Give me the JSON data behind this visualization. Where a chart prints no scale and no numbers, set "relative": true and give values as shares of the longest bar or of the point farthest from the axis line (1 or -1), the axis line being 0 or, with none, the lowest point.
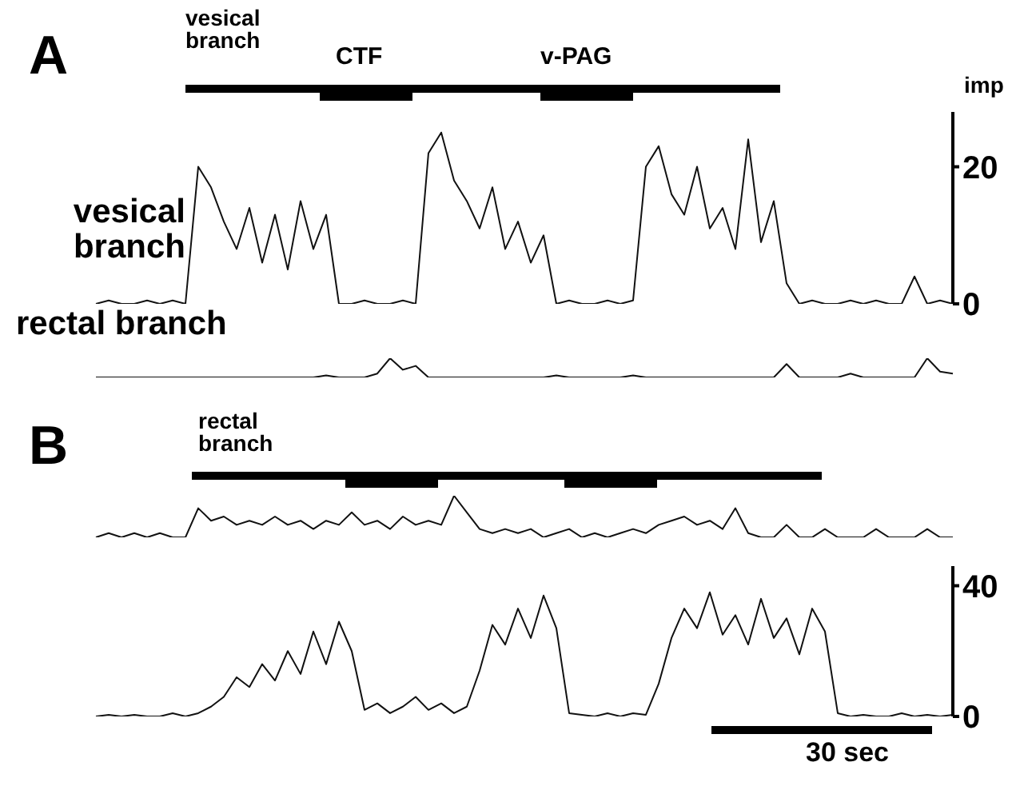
{
  "chart_data": [
    {
      "type": "line",
      "title": "A",
      "ylabel": "imp",
      "annotations": [
        "vesical branch",
        "CTF",
        "v-PAG"
      ],
      "categories": [
        null,
        null,
        null,
        null,
        null,
        null,
        null,
        null,
        null,
        null,
        null,
        null,
        null,
        null,
        null,
        null,
        null,
        null,
        null,
        null,
        null,
        null,
        null,
        null,
        null,
        null,
        null,
        null,
        null,
        null,
        null,
        null,
        null,
        null,
        null,
        null,
        null,
        null,
        null,
        null,
        null,
        null,
        null,
        null,
        null,
        null,
        null,
        null,
        null,
        null,
        null,
        null,
        null,
        null,
        null,
        null,
        null,
        null,
        null,
        null,
        null,
        null,
        null,
        null,
        null,
        null,
        null,
        null
      ],
      "ylim": [
        0,
        28
      ],
      "yticks": [
        0,
        20
      ],
      "tick_labels": "y",
      "series": [
        {
          "name": "vesical branch",
          "color": "#111111",
          "values": [
            0,
            0.5,
            0,
            0,
            0.5,
            0,
            0.5,
            0,
            20,
            17,
            12,
            8,
            14,
            6,
            13,
            5,
            15,
            8,
            13,
            0,
            0,
            0.5,
            0,
            0,
            0.5,
            0,
            22,
            25,
            18,
            15,
            11,
            17,
            8,
            12,
            6,
            10,
            0,
            0.5,
            0,
            0,
            0.5,
            0,
            0.5,
            20,
            23,
            16,
            13,
            20,
            11,
            14,
            8,
            24,
            9,
            15,
            3,
            0,
            0.5,
            0,
            0,
            0.5,
            0,
            0.5,
            0,
            0,
            4,
            0,
            0.5,
            0
          ]
        }
      ]
    },
    {
      "type": "line",
      "relative": true,
      "tick_labels": false,
      "categories": [
        null,
        null,
        null,
        null,
        null,
        null,
        null,
        null,
        null,
        null,
        null,
        null,
        null,
        null,
        null,
        null,
        null,
        null,
        null,
        null,
        null,
        null,
        null,
        null,
        null,
        null,
        null,
        null,
        null,
        null,
        null,
        null,
        null,
        null,
        null,
        null,
        null,
        null,
        null,
        null,
        null,
        null,
        null,
        null,
        null,
        null,
        null,
        null,
        null,
        null,
        null,
        null,
        null,
        null,
        null,
        null,
        null,
        null,
        null,
        null,
        null,
        null,
        null,
        null,
        null,
        null,
        null,
        null
      ],
      "series": [
        {
          "name": "rectal branch",
          "color": "#111111",
          "values": [
            0,
            0,
            0,
            0,
            0,
            0,
            0,
            0,
            0,
            0,
            0,
            0,
            0,
            0,
            0,
            0,
            0,
            0,
            0.1,
            0,
            0,
            0,
            0.2,
            1,
            0.4,
            0.6,
            0,
            0,
            0,
            0,
            0,
            0,
            0,
            0,
            0,
            0,
            0.1,
            0,
            0,
            0,
            0,
            0,
            0.1,
            0,
            0,
            0,
            0,
            0,
            0,
            0,
            0,
            0,
            0,
            0,
            0.7,
            0,
            0,
            0,
            0,
            0.2,
            0,
            0,
            0,
            0,
            0,
            1,
            0.3,
            0.2
          ]
        }
      ]
    },
    {
      "type": "line",
      "title": "B",
      "annotations": [
        "rectal branch"
      ],
      "relative": true,
      "tick_labels": false,
      "categories": [
        null,
        null,
        null,
        null,
        null,
        null,
        null,
        null,
        null,
        null,
        null,
        null,
        null,
        null,
        null,
        null,
        null,
        null,
        null,
        null,
        null,
        null,
        null,
        null,
        null,
        null,
        null,
        null,
        null,
        null,
        null,
        null,
        null,
        null,
        null,
        null,
        null,
        null,
        null,
        null,
        null,
        null,
        null,
        null,
        null,
        null,
        null,
        null,
        null,
        null,
        null,
        null,
        null,
        null,
        null,
        null,
        null,
        null,
        null,
        null,
        null,
        null,
        null,
        null,
        null,
        null,
        null,
        null
      ],
      "series": [
        {
          "color": "#111111",
          "values": [
            0,
            0.1,
            0,
            0.1,
            0,
            0.1,
            0,
            0,
            0.7,
            0.4,
            0.5,
            0.3,
            0.4,
            0.3,
            0.5,
            0.3,
            0.4,
            0.2,
            0.4,
            0.3,
            0.6,
            0.3,
            0.4,
            0.2,
            0.5,
            0.3,
            0.4,
            0.3,
            1,
            0.6,
            0.2,
            0.1,
            0.2,
            0.1,
            0.2,
            0,
            0.1,
            0.2,
            0,
            0.1,
            0,
            0.1,
            0.2,
            0.1,
            0.3,
            0.4,
            0.5,
            0.3,
            0.4,
            0.2,
            0.7,
            0.1,
            0,
            0,
            0.3,
            0,
            0,
            0.2,
            0,
            0,
            0,
            0.2,
            0,
            0,
            0,
            0.2,
            0,
            0
          ]
        }
      ]
    },
    {
      "type": "line",
      "annotations": [
        "30 sec"
      ],
      "categories": [
        null,
        null,
        null,
        null,
        null,
        null,
        null,
        null,
        null,
        null,
        null,
        null,
        null,
        null,
        null,
        null,
        null,
        null,
        null,
        null,
        null,
        null,
        null,
        null,
        null,
        null,
        null,
        null,
        null,
        null,
        null,
        null,
        null,
        null,
        null,
        null,
        null,
        null,
        null,
        null,
        null,
        null,
        null,
        null,
        null,
        null,
        null,
        null,
        null,
        null,
        null,
        null,
        null,
        null,
        null,
        null,
        null,
        null,
        null,
        null,
        null,
        null,
        null,
        null,
        null,
        null,
        null,
        null
      ],
      "ylim": [
        0,
        46
      ],
      "yticks": [
        0,
        40
      ],
      "tick_labels": "y",
      "series": [
        {
          "color": "#111111",
          "values": [
            0,
            0.5,
            0,
            0.5,
            0,
            0,
            1,
            0,
            1,
            3,
            6,
            12,
            9,
            16,
            11,
            20,
            13,
            26,
            16,
            29,
            20,
            2,
            4,
            1,
            3,
            6,
            2,
            4,
            1,
            3,
            14,
            28,
            22,
            33,
            24,
            37,
            27,
            1,
            0.5,
            0,
            1,
            0,
            1,
            0.5,
            10,
            24,
            33,
            27,
            38,
            25,
            31,
            22,
            36,
            24,
            30,
            19,
            33,
            26,
            1,
            0,
            0.5,
            0,
            0,
            1,
            0,
            0.5,
            0,
            0.5
          ]
        }
      ]
    }
  ]
}
